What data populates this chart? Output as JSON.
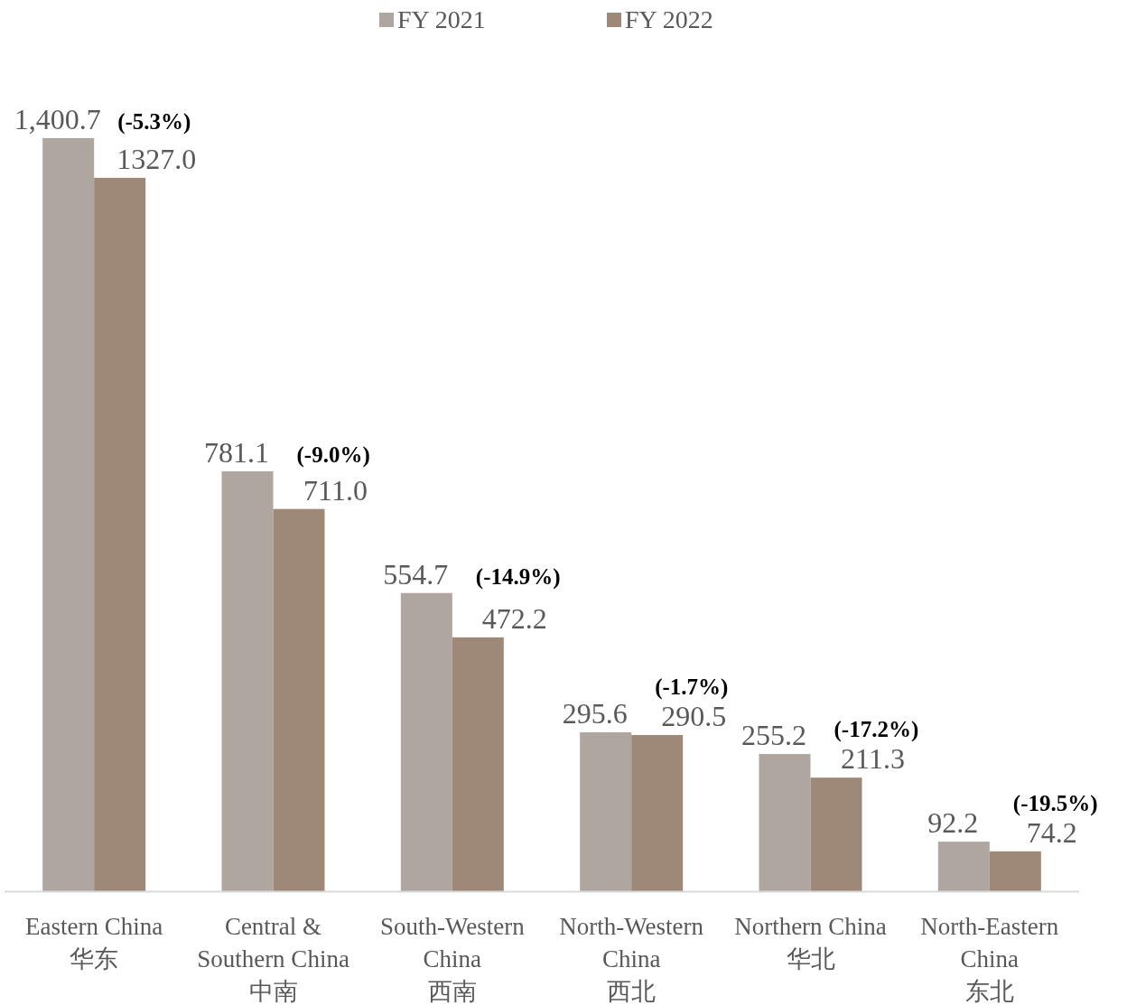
{
  "chart_data": {
    "type": "bar",
    "categories": [
      "Eastern China\n华东",
      "Central &\nSouthern China\n中南",
      "South-Western\nChina\n西南",
      "North-Western\nChina\n西北",
      "Northern China\n华北",
      "North-Eastern\nChina\n东北"
    ],
    "series": [
      {
        "name": "FY 2021",
        "color": "#b0a6a0",
        "values": [
          1400.7,
          781.1,
          554.7,
          295.6,
          255.2,
          92.2
        ],
        "value_labels": [
          "1,400.7",
          "781.1",
          "554.7",
          "295.6",
          "255.2",
          "92.2"
        ]
      },
      {
        "name": "FY 2022",
        "color": "#9e8878",
        "values": [
          1327.0,
          711.0,
          472.2,
          290.5,
          211.3,
          74.2
        ],
        "value_labels": [
          "1327.0",
          "711.0",
          "472.2",
          "290.5",
          "211.3",
          "74.2"
        ]
      }
    ],
    "annotations": [
      "(-5.3%)",
      "(-9.0%)",
      "(-14.9%)",
      "(-1.7%)",
      "(-17.2%)",
      "(-19.5%)"
    ],
    "legend": "top"
  }
}
